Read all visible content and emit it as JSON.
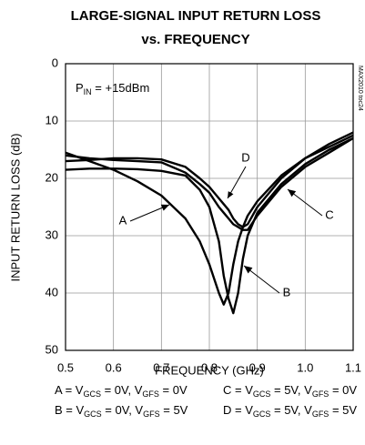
{
  "chart_data": {
    "type": "line",
    "title": "LARGE-SIGNAL INPUT RETURN LOSS",
    "subtitle": "vs. FREQUENCY",
    "x_label": "FREQUENCY (GHz)",
    "y_label": "INPUT RETURN LOSS (dB)",
    "watermark": "MAX2010 toc24",
    "annotation": [
      "P",
      "IN",
      " = +15dBm"
    ],
    "xlim": [
      0.5,
      1.1
    ],
    "ylim": [
      0,
      50
    ],
    "y_inverted": true,
    "grid": true,
    "xticks": [
      0.5,
      0.6,
      0.7,
      0.8,
      0.9,
      {
        "value": 1.0,
        "label": "1.0"
      },
      1.1
    ],
    "yticks": [
      0,
      10,
      20,
      30,
      40,
      50
    ],
    "x": [
      0.5,
      0.55,
      0.6,
      0.65,
      0.7,
      0.75,
      0.78,
      0.8,
      0.82,
      0.83,
      0.84,
      0.85,
      0.86,
      0.87,
      0.88,
      0.9,
      0.95,
      1.0,
      1.05,
      1.1
    ],
    "series": [
      {
        "name": "A",
        "color": "#000000",
        "values": [
          15.5,
          17,
          18.5,
          20.5,
          23,
          27,
          31,
          35,
          40,
          42,
          40,
          35,
          31,
          28.5,
          26.5,
          24,
          19.5,
          16.5,
          14.5,
          12.5
        ]
      },
      {
        "name": "B",
        "color": "#000000",
        "values": [
          18.5,
          18.3,
          18.3,
          18.4,
          18.7,
          19.5,
          22,
          25,
          31,
          37,
          41,
          43.5,
          40,
          34,
          30,
          26,
          21,
          17.5,
          15,
          13
        ]
      },
      {
        "name": "C",
        "color": "#000000",
        "values": [
          16,
          16.5,
          16.8,
          17,
          17.2,
          19,
          21,
          22.5,
          25,
          26,
          27,
          28,
          28.5,
          29,
          29,
          26.5,
          21.5,
          18,
          15.5,
          13
        ]
      },
      {
        "name": "D",
        "color": "#000000",
        "values": [
          17,
          16.8,
          16.5,
          16.5,
          16.7,
          18,
          20,
          21.5,
          23.5,
          24.5,
          25.5,
          27,
          28,
          28.5,
          28,
          25,
          20,
          16.5,
          14,
          12
        ]
      }
    ],
    "legend": [
      [
        "A = V",
        "GCS",
        " = 0V, V",
        "GFS",
        " = 0V"
      ],
      [
        "B = V",
        "GCS",
        " = 0V, V",
        "GFS",
        " = 5V"
      ],
      [
        "C = V",
        "GCS",
        " = 5V, V",
        "GFS",
        " = 0V"
      ],
      [
        "D = V",
        "GCS",
        " = 5V, V",
        "GFS",
        " = 5V"
      ]
    ]
  }
}
